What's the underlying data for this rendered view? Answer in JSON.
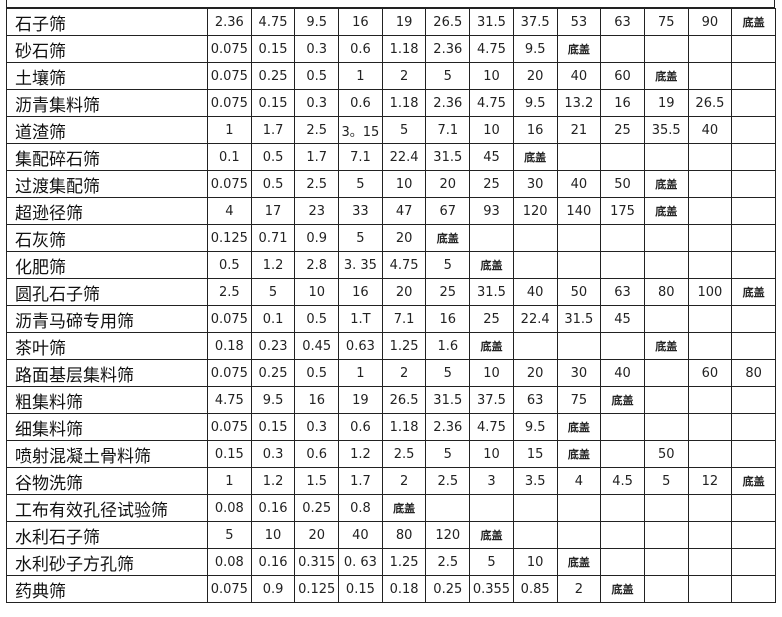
{
  "table": {
    "cover_label": "底盖",
    "rows": [
      {
        "name": "石子筛",
        "cells": [
          "2.36",
          "4.75",
          "9.5",
          "16",
          "19",
          "26.5",
          "31.5",
          "37.5",
          "53",
          "63",
          "75",
          "90",
          "底盖"
        ]
      },
      {
        "name": "砂石筛",
        "cells": [
          "0.075",
          "0.15",
          "0.3",
          "0.6",
          "1.18",
          "2.36",
          "4.75",
          "9.5",
          "底盖",
          "",
          "",
          "",
          ""
        ]
      },
      {
        "name": "土壤筛",
        "cells": [
          "0.075",
          "0.25",
          "0.5",
          "1",
          "2",
          "5",
          "10",
          "20",
          "40",
          "60",
          "底盖",
          "",
          ""
        ]
      },
      {
        "name": "沥青集料筛",
        "cells": [
          "0.075",
          "0.15",
          "0.3",
          "0.6",
          "1.18",
          "2.36",
          "4.75",
          "9.5",
          "13.2",
          "16",
          "19",
          "26.5",
          ""
        ]
      },
      {
        "name": "道渣筛",
        "cells": [
          "1",
          "1.7",
          "2.5",
          "3。15",
          "5",
          "7.1",
          "10",
          "16",
          "21",
          "25",
          "35.5",
          "40",
          ""
        ]
      },
      {
        "name": "集配碎石筛",
        "cells": [
          "0.1",
          "0.5",
          "1.7",
          "7.1",
          "22.4",
          "31.5",
          "45",
          "底盖",
          "",
          "",
          "",
          "",
          ""
        ]
      },
      {
        "name": "过渡集配筛",
        "cells": [
          "0.075",
          "0.5",
          "2.5",
          "5",
          "10",
          "20",
          "25",
          "30",
          "40",
          "50",
          "底盖",
          "",
          ""
        ]
      },
      {
        "name": "超逊径筛",
        "cells": [
          "4",
          "17",
          "23",
          "33",
          "47",
          "67",
          "93",
          "120",
          "140",
          "175",
          "底盖",
          "",
          ""
        ]
      },
      {
        "name": "石灰筛",
        "cells": [
          "0.125",
          "0.71",
          "0.9",
          "5",
          "20",
          "底盖",
          "",
          "",
          "",
          "",
          "",
          "",
          ""
        ]
      },
      {
        "name": "化肥筛",
        "cells": [
          "0.5",
          "1.2",
          "2.8",
          "3. 35",
          "4.75",
          "5",
          "底盖",
          "",
          "",
          "",
          "",
          "",
          ""
        ]
      },
      {
        "name": "圆孔石子筛",
        "cells": [
          "2.5",
          "5",
          "10",
          "16",
          "20",
          "25",
          "31.5",
          "40",
          "50",
          "63",
          "80",
          "100",
          "底盖"
        ]
      },
      {
        "name": "沥青马碲专用筛",
        "cells": [
          "0.075",
          "0.1",
          "0.5",
          "1.T",
          "7.1",
          "16",
          "25",
          "22.4",
          "31.5",
          "45",
          "",
          "",
          ""
        ]
      },
      {
        "name": "茶叶筛",
        "cells": [
          "0.18",
          "0.23",
          "0.45",
          "0.63",
          "1.25",
          "1.6",
          "底盖",
          "",
          "",
          "",
          "底盖",
          "",
          ""
        ]
      },
      {
        "name": "路面基层集料筛",
        "cells": [
          "0.075",
          "0.25",
          "0.5",
          "1",
          "2",
          "5",
          "10",
          "20",
          "30",
          "40",
          "",
          "60",
          "80"
        ]
      },
      {
        "name": "粗集料筛",
        "cells": [
          "4.75",
          "9.5",
          "16",
          "19",
          "26.5",
          "31.5",
          "37.5",
          "63",
          "75",
          "底盖",
          "",
          "",
          ""
        ]
      },
      {
        "name": "细集料筛",
        "cells": [
          "0.075",
          "0.15",
          "0.3",
          "0.6",
          "1.18",
          "2.36",
          "4.75",
          "9.5",
          "底盖",
          "",
          "",
          "",
          ""
        ]
      },
      {
        "name": "喷射混凝土骨料筛",
        "cells": [
          "0.15",
          "0.3",
          "0.6",
          "1.2",
          "2.5",
          "5",
          "10",
          "15",
          "底盖",
          "",
          "50",
          "",
          ""
        ]
      },
      {
        "name": "谷物洗筛",
        "cells": [
          "1",
          "1.2",
          "1.5",
          "1.7",
          "2",
          "2.5",
          "3",
          "3.5",
          "4",
          "4.5",
          "5",
          "12",
          "底盖"
        ]
      },
      {
        "name": "工布有效孔径试验筛",
        "cells": [
          "0.08",
          "0.16",
          "0.25",
          "0.8",
          "底盖",
          "",
          "",
          "",
          "",
          "",
          "",
          "",
          ""
        ]
      },
      {
        "name": "水利石子筛",
        "cells": [
          "5",
          "10",
          "20",
          "40",
          "80",
          "120",
          "底盖",
          "",
          "",
          "",
          "",
          "",
          ""
        ]
      },
      {
        "name": "水利砂子方孔筛",
        "cells": [
          "0.08",
          "0.16",
          "0.315",
          "0. 63",
          "1.25",
          "2.5",
          "5",
          "10",
          "底盖",
          "",
          "",
          "",
          ""
        ]
      },
      {
        "name": "药典筛",
        "cells": [
          "0.075",
          "0.9",
          "0.125",
          "0.15",
          "0.18",
          "0.25",
          "0.355",
          "0.85",
          "2",
          "底盖",
          "",
          "",
          ""
        ]
      }
    ]
  }
}
